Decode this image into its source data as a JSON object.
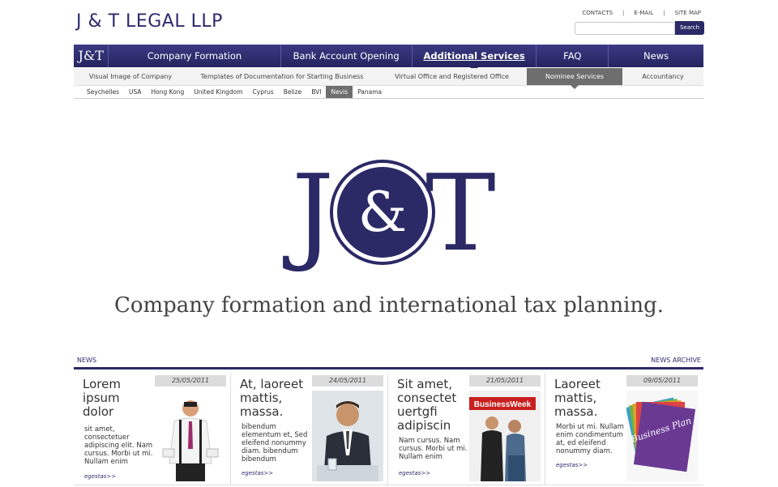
{
  "header": {
    "site_title": "J & T LEGAL LLP",
    "links": [
      "CONTACTS",
      "E-MAIL",
      "SITE MAP"
    ],
    "search_button": "Search",
    "search_placeholder": ""
  },
  "mainnav": {
    "logo": "J&T",
    "items": [
      {
        "label": "Company Formation"
      },
      {
        "label": "Bank Account Opening"
      },
      {
        "label": "Additional Services"
      },
      {
        "label": "FAQ"
      },
      {
        "label": "News"
      }
    ]
  },
  "subnav": {
    "items": [
      {
        "label": "Visual Image of Company"
      },
      {
        "label": "Templates of Documentation for Starting Business"
      },
      {
        "label": "Virtual Office and Registered Office"
      },
      {
        "label": "Nominee Services"
      },
      {
        "label": "Accountancy"
      }
    ]
  },
  "countries": [
    "Seychelles",
    "USA",
    "Hong Kong",
    "United Kingdom",
    "Cyprus",
    "Belize",
    "BVI",
    "Nevis",
    "Panama"
  ],
  "hero": {
    "logo_text": "J&T",
    "tagline": "Company formation and international tax planning."
  },
  "news": {
    "heading": "NEWS",
    "archive": "NEWS ARCHIVE",
    "more_label": "egestas>>",
    "items": [
      {
        "date": "25/05/2011",
        "title": "Lorem ipsum dolor",
        "body": "sit amet, consectetuer adipiscing elit. Nam cursus. Morbi ut mi. Nullam enim"
      },
      {
        "date": "24/05/2011",
        "title": "At, laoreet mattis, massa.",
        "body": "bibendum elementum et, Sed eleifend nonummy diam. bibendum bibendum"
      },
      {
        "date": "21/05/2011",
        "title": "Sit amet, consectet uertgfi adipiscin",
        "body": "Nam cursus. Nam cursus. Morbi ut mi. Nullam enim"
      },
      {
        "date": "09/05/2011",
        "title": "Laoreet mattis, massa.",
        "body": "Morbi ut mi. Nullam enim condimentum at, ed eleifend nonummy diam."
      }
    ],
    "magazine_title": "BusinessWeek",
    "plan_text": "Business Plan"
  },
  "colors": {
    "brand": "#2b2a66",
    "active_sub": "#6e6e6e"
  }
}
